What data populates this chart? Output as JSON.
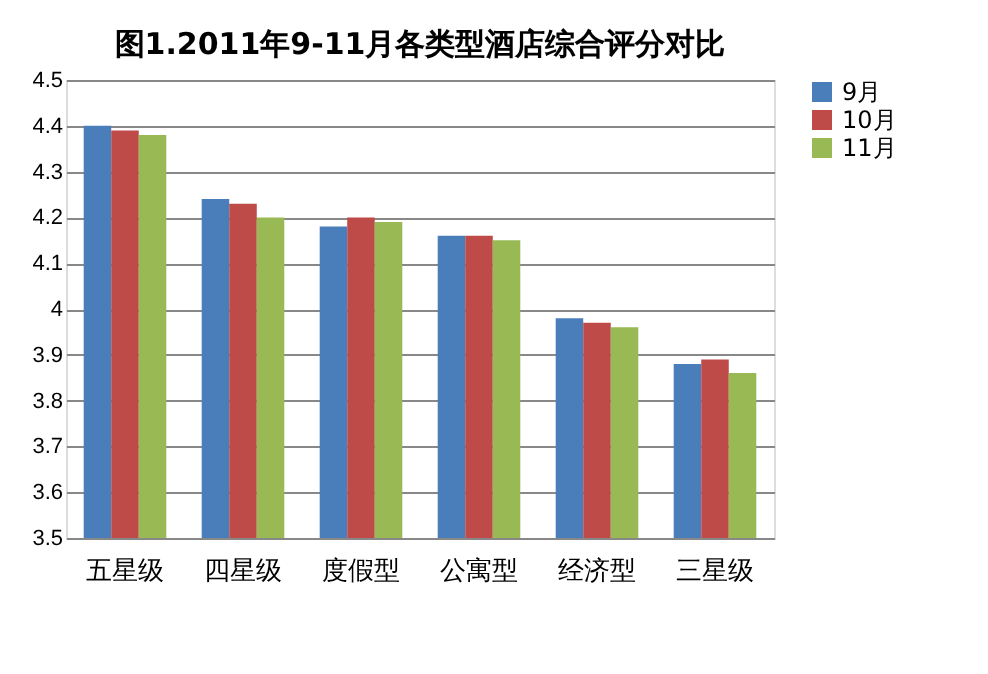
{
  "chart_data": {
    "type": "bar",
    "title": "图1.2011年9-11月各类型酒店综合评分对比",
    "categories": [
      "五星级",
      "四星级",
      "度假型",
      "公寓型",
      "经济型",
      "三星级"
    ],
    "series": [
      {
        "name": "9月",
        "color": "#4a7ebb",
        "values": [
          4.4,
          4.24,
          4.18,
          4.16,
          3.98,
          3.88
        ]
      },
      {
        "name": "10月",
        "color": "#be4b48",
        "values": [
          4.39,
          4.23,
          4.2,
          4.16,
          3.97,
          3.89
        ]
      },
      {
        "name": "11月",
        "color": "#98b954",
        "values": [
          4.38,
          4.2,
          4.19,
          4.15,
          3.96,
          3.86
        ]
      }
    ],
    "ylim": [
      3.5,
      4.5
    ],
    "yticks": [
      3.5,
      3.6,
      3.7,
      3.8,
      3.9,
      4,
      4.1,
      4.2,
      4.3,
      4.4,
      4.5
    ],
    "grid": "y",
    "legend": "right"
  }
}
